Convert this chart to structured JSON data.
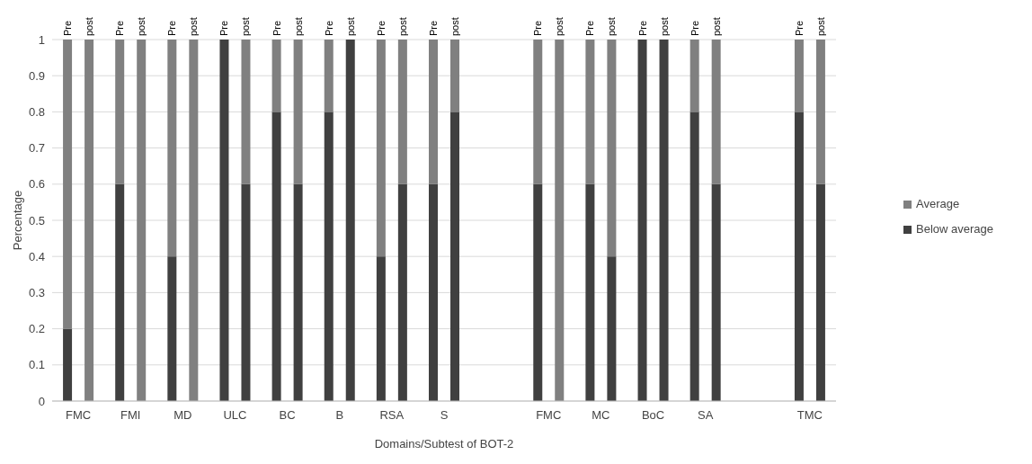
{
  "chart_data": {
    "type": "bar",
    "stacked": true,
    "xlabel": "Domains/Subtest of BOT-2",
    "ylabel": "Percentage",
    "categories": [
      "Pre",
      "post",
      "Pre",
      "post",
      "Pre",
      "post",
      "Pre",
      "post",
      "Pre",
      "post",
      "Pre",
      "post",
      "Pre",
      "post",
      "Pre",
      "post",
      null,
      null,
      "Pre",
      "post",
      "Pre",
      "post",
      "Pre",
      "post",
      "Pre",
      "post",
      null,
      null,
      "Pre",
      "post"
    ],
    "annotations": [
      "FMC",
      "FMI",
      "MD",
      "ULC",
      "BC",
      "B",
      "RSA",
      "S",
      "FMC",
      "MC",
      "BoC",
      "SA",
      "TMC"
    ],
    "series": [
      {
        "name": "Below average",
        "color": "#404040",
        "values": [
          0.2,
          0,
          0.6,
          0,
          0.4,
          0,
          1,
          0.6,
          0.8,
          0.6,
          0.8,
          1,
          0.4,
          0.6,
          0.6,
          0.8,
          null,
          null,
          0.6,
          0,
          0.6,
          0.4,
          1,
          1,
          0.8,
          0.6,
          null,
          null,
          0.8,
          0.6
        ]
      },
      {
        "name": "Average",
        "color": "#808080",
        "values": [
          0.8,
          1,
          0.4,
          1,
          0.6,
          1,
          0,
          0.4,
          0.2,
          0.4,
          0.2,
          0,
          0.6,
          0.4,
          0.4,
          0.2,
          null,
          null,
          0.4,
          1,
          0.4,
          0.6,
          0,
          0,
          0.2,
          0.4,
          null,
          null,
          0.2,
          0.4
        ]
      }
    ],
    "ylim": [
      0,
      1
    ],
    "yticks": [
      0,
      0.1,
      0.2,
      0.3,
      0.4,
      0.5,
      0.6,
      0.7,
      0.8,
      0.9,
      1
    ],
    "grid": "y",
    "legend": "right"
  }
}
